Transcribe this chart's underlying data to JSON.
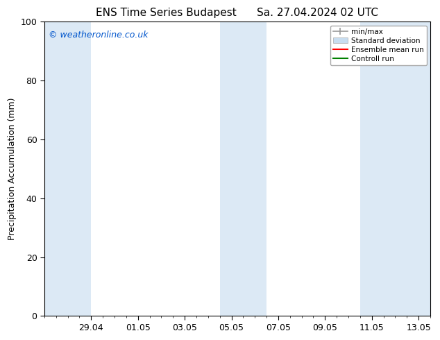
{
  "title": "ENS Time Series Budapest      Sa. 27.04.2024 02 UTC",
  "ylabel": "Precipitation Accumulation (mm)",
  "ylim": [
    0,
    100
  ],
  "yticks": [
    0,
    20,
    40,
    60,
    80,
    100
  ],
  "watermark": "© weatheronline.co.uk",
  "background_color": "#ffffff",
  "plot_bg_color": "#ffffff",
  "shaded_color": "#dce9f5",
  "x_min": 0.0,
  "x_max": 16.5,
  "xtick_labels": [
    "29.04",
    "01.05",
    "03.05",
    "05.05",
    "07.05",
    "09.05",
    "11.05",
    "13.05"
  ],
  "xtick_positions": [
    2.0,
    4.0,
    6.0,
    8.0,
    10.0,
    12.0,
    14.0,
    16.0
  ],
  "shaded_bands": [
    {
      "x_start": 0.0,
      "x_end": 2.0
    },
    {
      "x_start": 7.5,
      "x_end": 9.5
    },
    {
      "x_start": 13.5,
      "x_end": 16.5
    }
  ],
  "legend_labels": [
    "min/max",
    "Standard deviation",
    "Ensemble mean run",
    "Controll run"
  ],
  "legend_colors": [
    "#999999",
    "#c8ddf0",
    "#ff0000",
    "#008000"
  ],
  "font_size": 9,
  "title_font_size": 11
}
